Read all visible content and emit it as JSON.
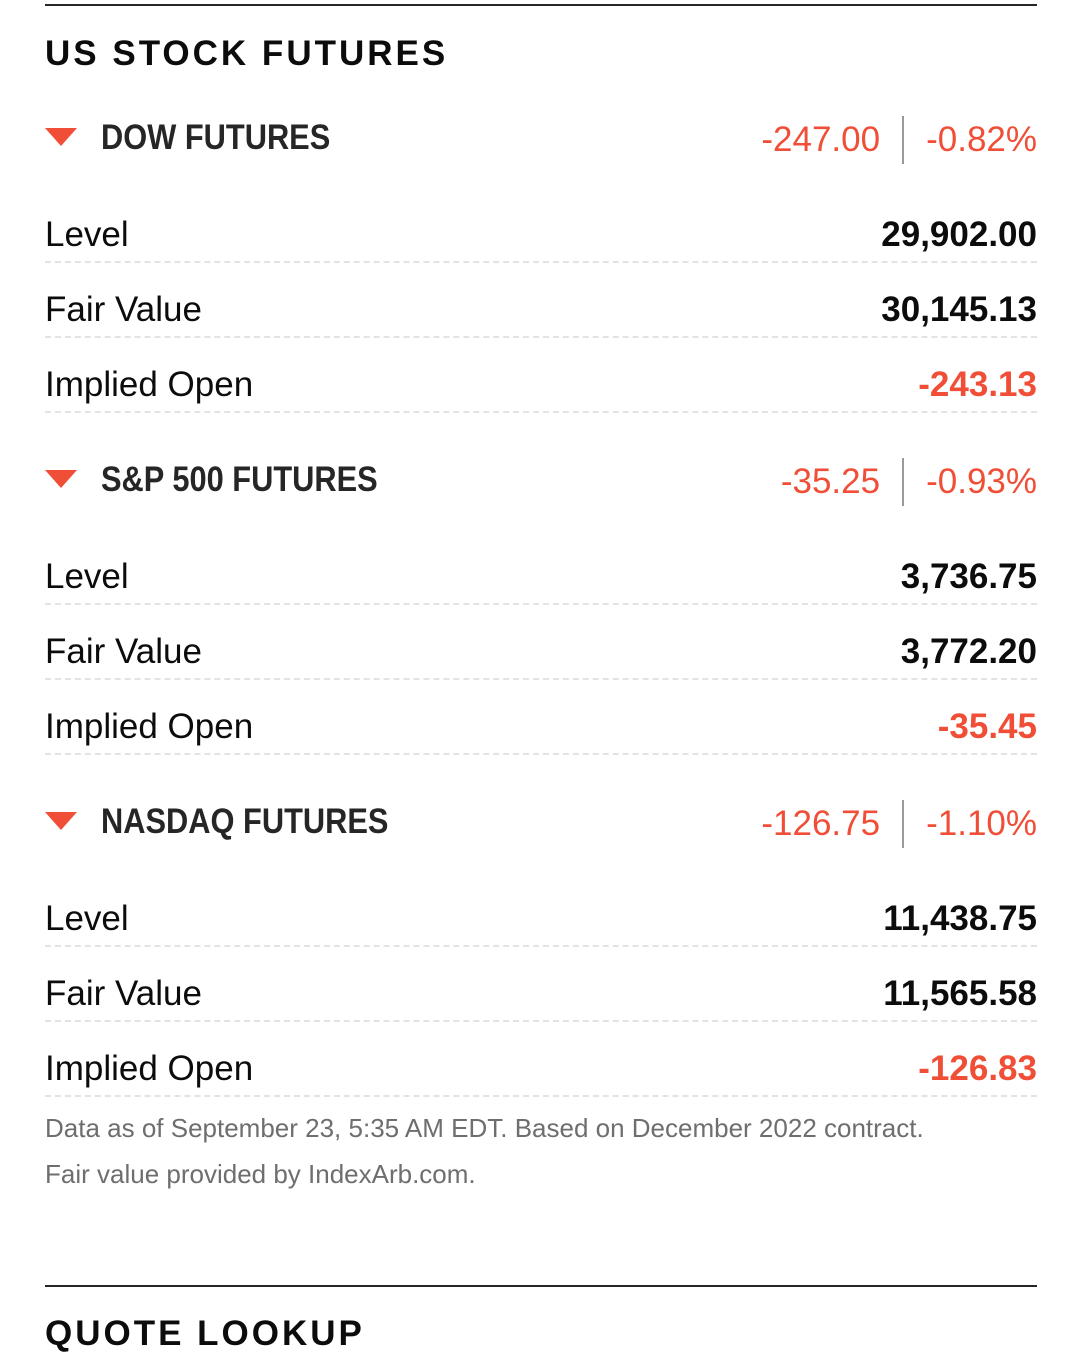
{
  "section_title": "US STOCK FUTURES",
  "groups": [
    {
      "name": "DOW FUTURES",
      "direction_icon": "triangle-down-icon",
      "change": "-247.00",
      "change_pct": "-0.82%",
      "rows": [
        {
          "label": "Level",
          "value": "29,902.00"
        },
        {
          "label": "Fair Value",
          "value": "30,145.13"
        },
        {
          "label": "Implied Open",
          "value": "-243.13"
        }
      ]
    },
    {
      "name": "S&P 500 FUTURES",
      "direction_icon": "triangle-down-icon",
      "change": "-35.25",
      "change_pct": "-0.93%",
      "rows": [
        {
          "label": "Level",
          "value": "3,736.75"
        },
        {
          "label": "Fair Value",
          "value": "3,772.20"
        },
        {
          "label": "Implied Open",
          "value": "-35.45"
        }
      ]
    },
    {
      "name": "NASDAQ FUTURES",
      "direction_icon": "triangle-down-icon",
      "change": "-126.75",
      "change_pct": "-1.10%",
      "rows": [
        {
          "label": "Level",
          "value": "11,438.75"
        },
        {
          "label": "Fair Value",
          "value": "11,565.58"
        },
        {
          "label": "Implied Open",
          "value": "-126.83"
        }
      ]
    }
  ],
  "footnote": {
    "line1": "Data as of September 23, 5:35 AM EDT. Based on December 2022 contract.",
    "line2": "Fair value provided by IndexArb.com."
  },
  "next_section_title": "QUOTE LOOKUP",
  "colors": {
    "negative": "#f04e37",
    "text": "#0c0c0c",
    "muted": "#6e6e6e"
  }
}
